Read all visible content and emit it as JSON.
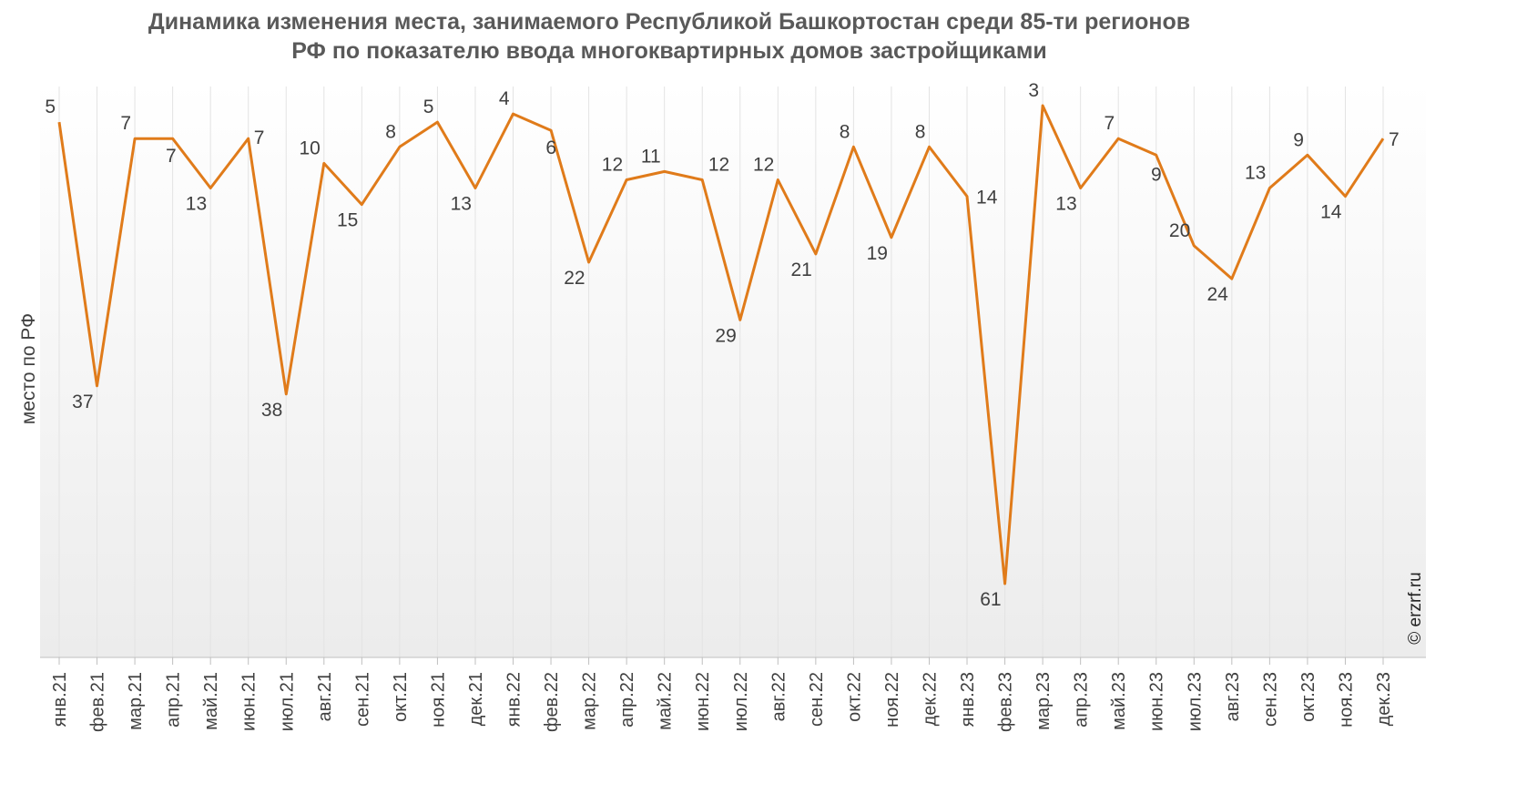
{
  "chart_data": {
    "type": "line",
    "title": "Динамика изменения места, занимаемого Республикой Башкортостан среди 85-ти регионов",
    "title_line2": "РФ по показателю ввода многоквартирных домов застройщиками",
    "ylabel": "место по РФ",
    "y_inverted": true,
    "grid": "vertical",
    "categories": [
      "янв.21",
      "фев.21",
      "мар.21",
      "апр.21",
      "май.21",
      "июн.21",
      "июл.21",
      "авг.21",
      "сен.21",
      "окт.21",
      "ноя.21",
      "дек.21",
      "янв.22",
      "фев.22",
      "мар.22",
      "апр.22",
      "май.22",
      "июн.22",
      "июл.22",
      "авг.22",
      "сен.22",
      "окт.22",
      "ноя.22",
      "дек.22",
      "янв.23",
      "фев.23",
      "мар.23",
      "апр.23",
      "май.23",
      "июн.23",
      "июл.23",
      "авг.23",
      "сен.23",
      "окт.23",
      "ноя.23",
      "дек.23"
    ],
    "series": [
      {
        "values": [
          5,
          37,
          7,
          7,
          13,
          7,
          38,
          10,
          15,
          8,
          5,
          13,
          4,
          6,
          22,
          12,
          11,
          12,
          29,
          12,
          21,
          8,
          19,
          8,
          14,
          61,
          3,
          13,
          7,
          9,
          20,
          24,
          13,
          9,
          14,
          7
        ]
      }
    ],
    "label_above": [
      true,
      false,
      true,
      false,
      false,
      false,
      false,
      true,
      false,
      true,
      true,
      false,
      true,
      false,
      false,
      true,
      true,
      true,
      false,
      true,
      false,
      true,
      false,
      true,
      false,
      false,
      true,
      false,
      true,
      false,
      true,
      false,
      true,
      true,
      false,
      false
    ],
    "line_color": "#E07B1A"
  },
  "copyright": "© erzrf.ru"
}
